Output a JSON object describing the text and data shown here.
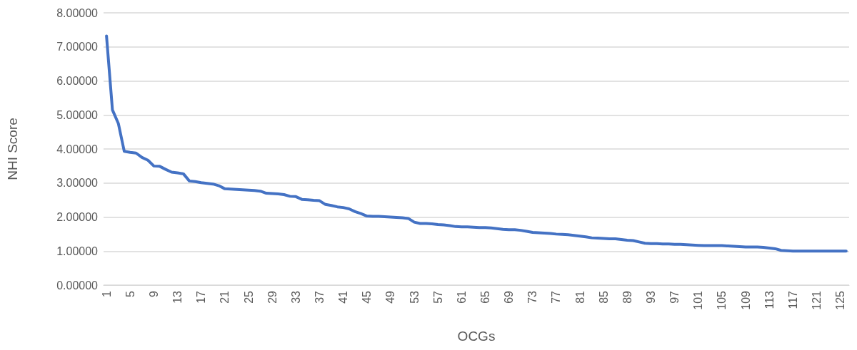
{
  "chart_data": {
    "type": "line",
    "xlabel": "OCGs",
    "ylabel": "NHI Score",
    "categories": [
      "1",
      null,
      null,
      null,
      "5",
      null,
      null,
      null,
      "9",
      null,
      null,
      null,
      "13",
      null,
      null,
      null,
      "17",
      null,
      null,
      null,
      "21",
      null,
      null,
      null,
      "25",
      null,
      null,
      null,
      "29",
      null,
      null,
      null,
      "33",
      null,
      null,
      null,
      "37",
      null,
      null,
      null,
      "41",
      null,
      null,
      null,
      "45",
      null,
      null,
      null,
      "49",
      null,
      null,
      null,
      "53",
      null,
      null,
      null,
      "57",
      null,
      null,
      null,
      "61",
      null,
      null,
      null,
      "65",
      null,
      null,
      null,
      "69",
      null,
      null,
      null,
      "73",
      null,
      null,
      null,
      "77",
      null,
      null,
      null,
      "81",
      null,
      null,
      null,
      "85",
      null,
      null,
      null,
      "89",
      null,
      null,
      null,
      "93",
      null,
      null,
      null,
      "97",
      null,
      null,
      null,
      "101",
      null,
      null,
      null,
      "105",
      null,
      null,
      null,
      "109",
      null,
      null,
      null,
      "113",
      null,
      null,
      null,
      "117",
      null,
      null,
      null,
      "121",
      null,
      null,
      null,
      "125",
      null
    ],
    "series": [
      {
        "color": "#4472c4",
        "values": [
          7.32,
          5.15,
          4.75,
          3.93,
          3.9,
          3.88,
          3.75,
          3.67,
          3.5,
          3.49,
          3.4,
          3.32,
          3.3,
          3.27,
          3.06,
          3.04,
          3.01,
          2.99,
          2.97,
          2.92,
          2.83,
          2.82,
          2.81,
          2.8,
          2.79,
          2.78,
          2.76,
          2.7,
          2.69,
          2.68,
          2.66,
          2.61,
          2.6,
          2.52,
          2.51,
          2.49,
          2.48,
          2.37,
          2.34,
          2.3,
          2.28,
          2.24,
          2.16,
          2.1,
          2.03,
          2.02,
          2.02,
          2.01,
          2.0,
          1.99,
          1.98,
          1.96,
          1.85,
          1.81,
          1.81,
          1.8,
          1.78,
          1.77,
          1.75,
          1.72,
          1.71,
          1.71,
          1.7,
          1.69,
          1.69,
          1.68,
          1.66,
          1.64,
          1.63,
          1.63,
          1.61,
          1.58,
          1.55,
          1.54,
          1.53,
          1.52,
          1.5,
          1.49,
          1.48,
          1.46,
          1.44,
          1.42,
          1.39,
          1.38,
          1.37,
          1.36,
          1.36,
          1.34,
          1.32,
          1.31,
          1.27,
          1.23,
          1.22,
          1.22,
          1.21,
          1.21,
          1.2,
          1.2,
          1.19,
          1.18,
          1.17,
          1.16,
          1.16,
          1.16,
          1.16,
          1.15,
          1.14,
          1.13,
          1.12,
          1.12,
          1.12,
          1.11,
          1.09,
          1.07,
          1.02,
          1.01,
          1.0,
          1.0,
          1.0,
          1.0,
          1.0,
          1.0,
          1.0,
          1.0,
          1.0,
          1.0
        ]
      }
    ],
    "ylim": [
      0,
      8
    ],
    "yticks": [
      {
        "value": 0,
        "label": "0.00000"
      },
      {
        "value": 1,
        "label": "1.00000"
      },
      {
        "value": 2,
        "label": "2.00000"
      },
      {
        "value": 3,
        "label": "3.00000"
      },
      {
        "value": 4,
        "label": "4.00000"
      },
      {
        "value": 5,
        "label": "5.00000"
      },
      {
        "value": 6,
        "label": "6.00000"
      },
      {
        "value": 7,
        "label": "7.00000"
      },
      {
        "value": 8,
        "label": "8.00000"
      }
    ],
    "grid": "y",
    "marker": "none",
    "line_style": "solid"
  }
}
